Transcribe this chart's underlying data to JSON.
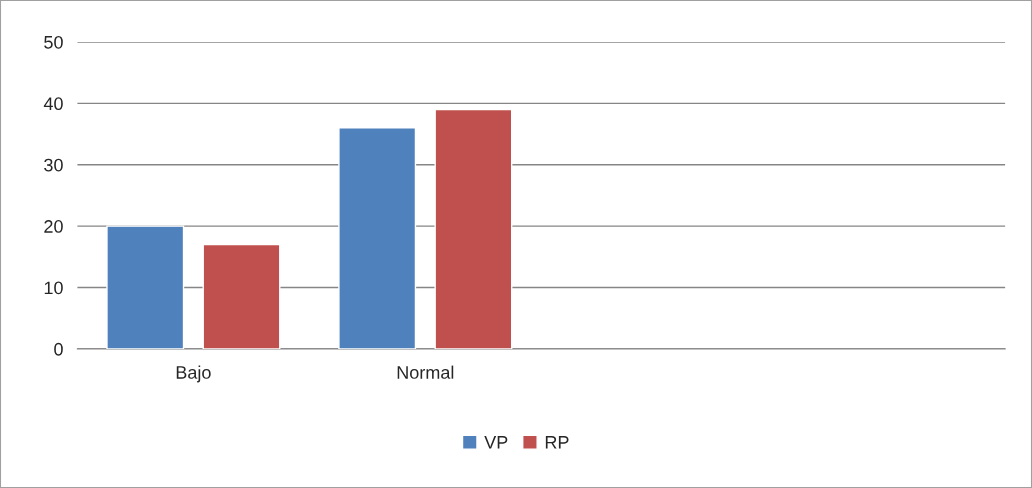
{
  "chart_data": {
    "type": "bar",
    "categories": [
      "Bajo",
      "Normal",
      null,
      null
    ],
    "series": [
      {
        "name": "VP",
        "color": "#4f81bd",
        "values": [
          20,
          36,
          null,
          null
        ]
      },
      {
        "name": "RP",
        "color": "#c0504d",
        "values": [
          17,
          39,
          null,
          null
        ]
      }
    ],
    "ylim": [
      0,
      50
    ],
    "yticks": [
      0,
      10,
      20,
      30,
      40,
      50
    ],
    "grid": "y",
    "legend": "bottom"
  }
}
